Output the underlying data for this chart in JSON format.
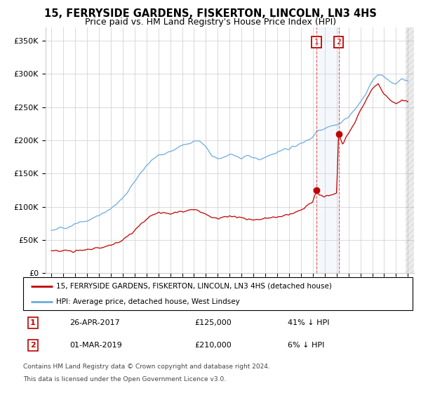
{
  "title": "15, FERRYSIDE GARDENS, FISKERTON, LINCOLN, LN3 4HS",
  "subtitle": "Price paid vs. HM Land Registry's House Price Index (HPI)",
  "ylabel_ticks": [
    "£0",
    "£50K",
    "£100K",
    "£150K",
    "£200K",
    "£250K",
    "£300K",
    "£350K"
  ],
  "ytick_values": [
    0,
    50000,
    100000,
    150000,
    200000,
    250000,
    300000,
    350000
  ],
  "ylim": [
    0,
    370000
  ],
  "xlim_start": 1994.5,
  "xlim_end": 2025.5,
  "hpi_color": "#6aacde",
  "price_color": "#c00000",
  "sale1_date": 2017.32,
  "sale1_price": 125000,
  "sale2_date": 2019.17,
  "sale2_price": 210000,
  "legend_label1": "15, FERRYSIDE GARDENS, FISKERTON, LINCOLN, LN3 4HS (detached house)",
  "legend_label2": "HPI: Average price, detached house, West Lindsey",
  "table_row1": [
    "1",
    "26-APR-2017",
    "£125,000",
    "41% ↓ HPI"
  ],
  "table_row2": [
    "2",
    "01-MAR-2019",
    "£210,000",
    "6% ↓ HPI"
  ],
  "footnote1": "Contains HM Land Registry data © Crown copyright and database right 2024.",
  "footnote2": "This data is licensed under the Open Government Licence v3.0.",
  "bg_color": "#ffffff",
  "grid_color": "#cccccc",
  "title_fontsize": 10.5,
  "subtitle_fontsize": 9
}
